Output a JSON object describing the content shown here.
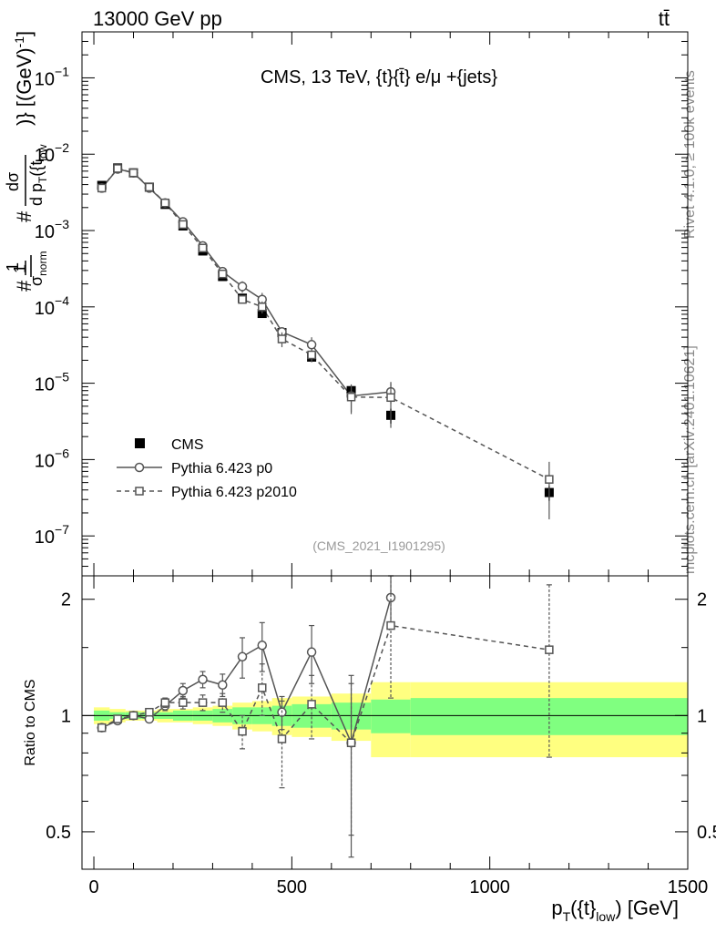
{
  "header": {
    "beam": "13000 GeV pp",
    "process": "tt̄"
  },
  "side_labels": {
    "rivet": "Rivet 4.1.0, ≥ 100k events",
    "mcplots": "mcplots.cern.ch [arXiv:2401.10621]"
  },
  "chart_data": {
    "type": "scatter",
    "title": "CMS, 13 TeV, {t}{t̄} e/μ +{jets}",
    "analysis_id": "(CMS_2021_I1901295)",
    "xlabel": "p_T({t}_low) [GeV]",
    "ylabel": "#1/σ_norm #dσ/dp_T({t_low)} [(GeV)^-1]",
    "ratio_ylabel": "Ratio to CMS",
    "xlim": [
      -30,
      1500
    ],
    "ylim_log": [
      3e-08,
      0.4
    ],
    "ratio_ylim": [
      0.4,
      2.3
    ],
    "x_ticks": [
      0,
      500,
      1000,
      1500
    ],
    "y_ticks": [
      {
        "value": 1e-07,
        "mantissa": "10",
        "exp": "−7"
      },
      {
        "value": 1e-06,
        "mantissa": "10",
        "exp": "−6"
      },
      {
        "value": 1e-05,
        "mantissa": "10",
        "exp": "−5"
      },
      {
        "value": 0.0001,
        "mantissa": "10",
        "exp": "−4"
      },
      {
        "value": 0.001,
        "mantissa": "10",
        "exp": "−3"
      },
      {
        "value": 0.01,
        "mantissa": "10",
        "exp": "−2"
      },
      {
        "value": 0.1,
        "mantissa": "10",
        "exp": "−1"
      }
    ],
    "ratio_ticks": [
      {
        "value": 0.5,
        "label": "0.5"
      },
      {
        "value": 1,
        "label": "1"
      },
      {
        "value": 2,
        "label": "2"
      }
    ],
    "bin_edges": [
      0,
      40,
      80,
      120,
      160,
      200,
      250,
      300,
      350,
      400,
      450,
      500,
      600,
      700,
      800,
      1500
    ],
    "x": [
      20,
      60,
      100,
      140,
      180,
      225,
      275,
      325,
      375,
      425,
      475,
      550,
      650,
      750,
      1150
    ],
    "series": [
      {
        "name": "CMS",
        "style": "data",
        "values": [
          0.0039,
          0.0066,
          0.0057,
          0.0037,
          0.0022,
          0.00115,
          0.00054,
          0.00025,
          0.00013,
          8.2e-05,
          4.6e-05,
          2.2e-05,
          8e-06,
          3.8e-06,
          3.7e-07
        ],
        "rel_total_unc": [
          0.05,
          0.04,
          0.03,
          0.03,
          0.04,
          0.04,
          0.05,
          0.06,
          0.08,
          0.09,
          0.11,
          0.12,
          0.14,
          0.22,
          0.22
        ],
        "rel_stat_unc": [
          0.03,
          0.02,
          0.02,
          0.02,
          0.02,
          0.03,
          0.03,
          0.04,
          0.05,
          0.05,
          0.06,
          0.07,
          0.08,
          0.1,
          0.11
        ]
      },
      {
        "name": "Pythia 6.423 p0",
        "style": "solid-circle",
        "values": [
          0.0036,
          0.0064,
          0.0057,
          0.0036,
          0.0023,
          0.0013,
          0.00063,
          0.00029,
          0.000185,
          0.000125,
          4.7e-05,
          3.2e-05,
          6.8e-06,
          7.7e-06,
          null
        ],
        "ratio": [
          0.93,
          0.97,
          1.0,
          0.98,
          1.06,
          1.16,
          1.24,
          1.2,
          1.42,
          1.52,
          1.02,
          1.46,
          0.85,
          2.02,
          null
        ],
        "ratio_err": [
          0.02,
          0.015,
          0.015,
          0.02,
          0.03,
          0.05,
          0.06,
          0.08,
          0.17,
          0.22,
          0.1,
          0.25,
          0.42,
          0.3,
          null
        ]
      },
      {
        "name": "Pythia 6.423 p2010",
        "style": "dashed-square",
        "values": [
          0.0036,
          0.0065,
          0.0057,
          0.0037,
          0.0023,
          0.0012,
          0.00059,
          0.00027,
          0.000125,
          0.0001,
          3.8e-05,
          2.35e-05,
          6.6e-06,
          6.5e-06,
          5.5e-07
        ],
        "ratio": [
          0.93,
          0.98,
          1.0,
          1.02,
          1.08,
          1.08,
          1.08,
          1.08,
          0.91,
          1.18,
          0.87,
          1.07,
          0.85,
          1.71,
          1.48
        ],
        "ratio_err": [
          0.02,
          0.015,
          0.015,
          0.02,
          0.03,
          0.04,
          0.05,
          0.06,
          0.09,
          0.18,
          0.22,
          0.2,
          0.36,
          0.6,
          0.7
        ]
      }
    ],
    "legend": {
      "position": "bottom-left",
      "entries": [
        "CMS",
        "Pythia 6.423 p0",
        "Pythia 6.423 p2010"
      ]
    },
    "colors": {
      "data": "#000000",
      "mc": "#555555",
      "band_total": "#ffff80",
      "band_stat": "#80ff80",
      "analysis_label": "#999999"
    }
  }
}
